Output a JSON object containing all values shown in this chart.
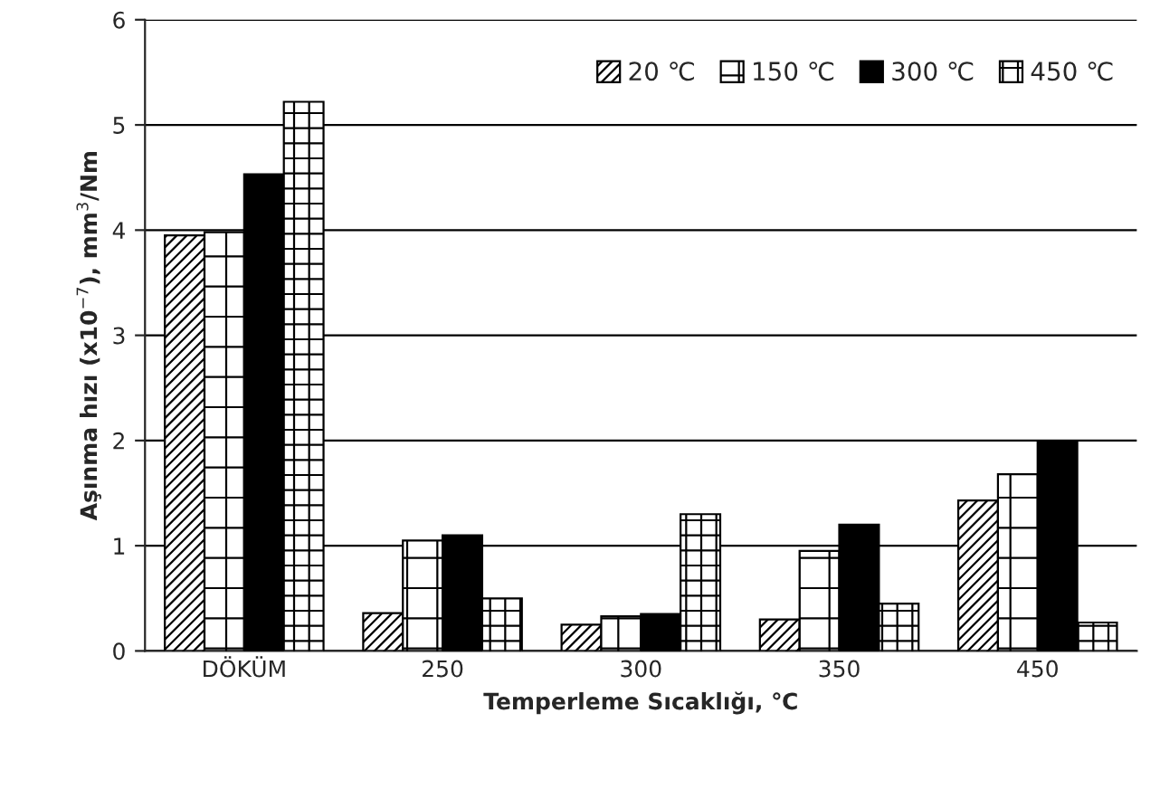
{
  "chart_data": {
    "type": "bar",
    "xlabel": "Temperleme Sıcaklığı, ℃",
    "ylabel": "Aşınma hızı (x10$^{−7}$), mm$^{3}$/Nm",
    "categories": [
      "DÖKÜM",
      "250",
      "300",
      "350",
      "450"
    ],
    "series": [
      {
        "name": "20 ℃",
        "color": "#000000",
        "values": [
          3.95,
          0.36,
          0.25,
          0.3,
          1.43
        ]
      },
      {
        "name": "150 ℃",
        "color": "#000000",
        "values": [
          3.98,
          1.05,
          0.33,
          0.95,
          1.68
        ]
      },
      {
        "name": "300 ℃",
        "color": "#000000",
        "values": [
          4.53,
          1.1,
          0.35,
          1.2,
          1.98
        ]
      },
      {
        "name": "450 ℃",
        "color": "#000000",
        "values": [
          5.22,
          0.5,
          1.3,
          0.45,
          0.27
        ]
      }
    ],
    "ylim": [
      0,
      6
    ],
    "yticks": [
      0,
      1,
      2,
      3,
      4,
      5,
      6
    ],
    "grid": "y",
    "legend": "top right"
  }
}
